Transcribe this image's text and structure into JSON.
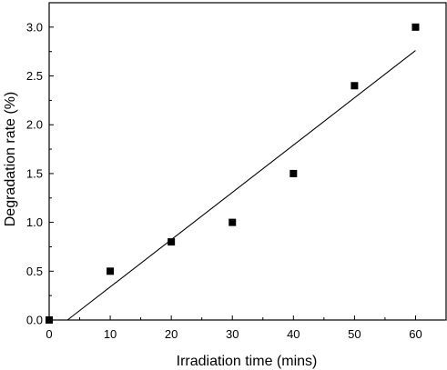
{
  "chart_data": {
    "type": "scatter",
    "title": "",
    "xlabel": "Irradiation time (mins)",
    "ylabel": "Degradation rate (%)",
    "xlim": [
      0,
      65
    ],
    "ylim": [
      0,
      3.25
    ],
    "xticks": [
      0,
      10,
      20,
      30,
      40,
      50,
      60
    ],
    "xtick_labels": [
      "0",
      "10",
      "20",
      "30",
      "40",
      "50",
      "60"
    ],
    "yticks": [
      0.0,
      0.5,
      1.0,
      1.5,
      2.0,
      2.5,
      3.0
    ],
    "ytick_labels": [
      "0.0",
      "0.5",
      "1.0",
      "1.5",
      "2.0",
      "2.5",
      "3.0"
    ],
    "grid": false,
    "series": [
      {
        "marker": "square",
        "color": "#000000",
        "x": [
          0,
          10,
          20,
          30,
          40,
          50,
          60
        ],
        "y": [
          0.0,
          0.5,
          0.8,
          1.0,
          1.5,
          2.4,
          3.0
        ]
      }
    ],
    "fit_line": {
      "color": "#000000",
      "x": [
        3,
        60
      ],
      "y": [
        0.0,
        2.76
      ]
    }
  }
}
